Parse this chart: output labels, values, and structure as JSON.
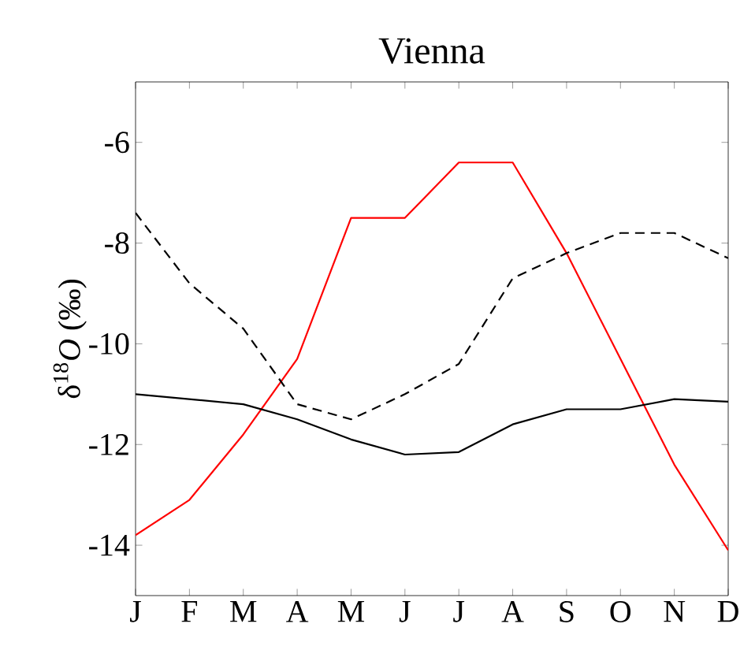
{
  "chart_data": {
    "type": "line",
    "title": "Vienna",
    "ylabel": "δ$^{18}$*O* (‰)",
    "categories": [
      "J",
      "F",
      "M",
      "A",
      "M",
      "J",
      "J",
      "A",
      "S",
      "O",
      "N",
      "D"
    ],
    "series": [
      {
        "color": "#ff0000",
        "line_style": "solid",
        "values": [
          -13.8,
          -13.1,
          -11.8,
          -10.3,
          -7.5,
          -7.5,
          -6.4,
          -6.4,
          -8.2,
          -10.3,
          -12.4,
          -14.1
        ]
      },
      {
        "color": "#000000",
        "line_style": "dashed",
        "values": [
          -7.4,
          -8.8,
          -9.7,
          -11.2,
          -11.5,
          -11.0,
          -10.4,
          -8.7,
          -8.2,
          -7.8,
          -7.8,
          -8.3
        ]
      },
      {
        "color": "#000000",
        "line_style": "solid",
        "values": [
          -11.0,
          -11.1,
          -11.2,
          -11.5,
          -11.9,
          -12.2,
          -12.15,
          -11.6,
          -11.3,
          -11.3,
          -11.1,
          -11.15
        ]
      }
    ],
    "ylim": [
      -15,
      -4.8
    ],
    "yticks": [
      -14,
      -12,
      -10,
      -8,
      -6
    ],
    "grid": false,
    "marker": "none"
  }
}
